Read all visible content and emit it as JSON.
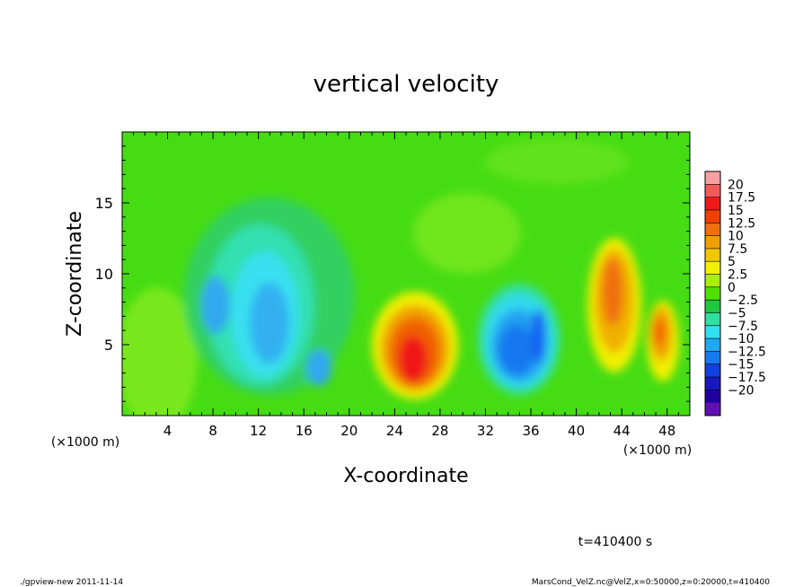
{
  "chart_data": {
    "type": "heatmap",
    "title": "vertical velocity",
    "xlabel": "X-coordinate",
    "ylabel": "Z-coordinate",
    "x_unit": "(×1000 m)",
    "xlim": [
      0,
      50
    ],
    "ylim": [
      0,
      20
    ],
    "x_ticks": [
      4,
      8,
      12,
      16,
      20,
      24,
      28,
      32,
      36,
      40,
      44,
      48
    ],
    "y_ticks": [
      5,
      10,
      15
    ],
    "colorbar": {
      "levels": [
        "20",
        "17.5",
        "15",
        "12.5",
        "10",
        "7.5",
        "5",
        "2.5",
        "0",
        "−2.5",
        "−5",
        "−7.5",
        "−10",
        "−12.5",
        "−15",
        "−17.5",
        "−20"
      ],
      "colors": [
        "#f7a0a0",
        "#f25a5a",
        "#f01818",
        "#f04000",
        "#f07010",
        "#f0a000",
        "#f0c800",
        "#f0f000",
        "#a8f000",
        "#50e000",
        "#20c840",
        "#30e0a0",
        "#30e0f0",
        "#20a8f0",
        "#1878f0",
        "#1040e0",
        "#1818c0",
        "#2000a0",
        "#6010b0"
      ]
    },
    "regions": [
      {
        "kind": "updraft",
        "x": 25.8,
        "z": 3.8,
        "peak": 15
      },
      {
        "kind": "updraft",
        "x": 42.8,
        "z": 7.5,
        "peak": 12.5
      },
      {
        "kind": "updraft",
        "x": 47.0,
        "z": 5.5,
        "peak": 12.5
      },
      {
        "kind": "downdraft",
        "x": 35.0,
        "z": 4.5,
        "peak": -12.5
      },
      {
        "kind": "downdraft",
        "x": 12.5,
        "z": 8.0,
        "peak": -10
      },
      {
        "kind": "downdraft",
        "x": 8.2,
        "z": 7.5,
        "peak": -7.5
      }
    ]
  },
  "time_label": "t=410400 s",
  "footer_left": "./gpview-new  2011-11-14",
  "footer_right": "MarsCond_VelZ.nc@VelZ,x=0:50000,z=0:20000,t=410400"
}
